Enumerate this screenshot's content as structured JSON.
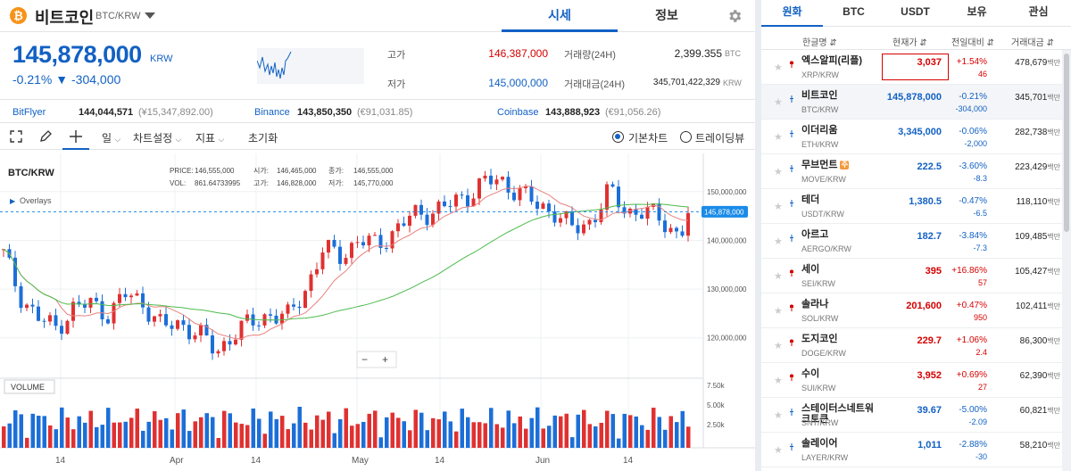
{
  "header": {
    "coin_name": "비트코인",
    "coin_pair": "BTC/KRW",
    "coin_symbol": "₿",
    "tabs": [
      "시세",
      "정보"
    ]
  },
  "price": {
    "value": "145,878,000",
    "unit": "KRW",
    "change_pct": "-0.21%",
    "change_arrow": "▼",
    "change_abs": "-304,000"
  },
  "stats": {
    "high_label": "고가",
    "high": "146,387,000",
    "low_label": "저가",
    "low": "145,000,000",
    "vol_label": "거래량(24H)",
    "vol": "2,399.355",
    "vol_unit": "BTC",
    "amt_label": "거래대금(24H)",
    "amt": "345,701,422,329",
    "amt_unit": "KRW"
  },
  "exchanges": [
    {
      "name": "BitFlyer",
      "value": "144,044,571",
      "sub": "(¥15,347,892.00)"
    },
    {
      "name": "Binance",
      "value": "143,850,350",
      "sub": "(€91,031.85)"
    },
    {
      "name": "Coinbase",
      "value": "143,888,923",
      "sub": "(€91,056.26)"
    }
  ],
  "toolbar": {
    "period": "일",
    "settings": "차트설정",
    "indicator": "지표",
    "reset": "초기화",
    "radio1": "기본차트",
    "radio2": "트레이딩뷰"
  },
  "chart": {
    "symbol": "BTC/KRW",
    "ohlc": {
      "price_l": "PRICE:",
      "price": "146,555,000",
      "vol_l": "VOL:",
      "vol": "861.64733995",
      "open_l": "시가:",
      "open": "146,465,000",
      "high_l": "고가:",
      "high": "146,828,000",
      "close_l": "종가:",
      "close": "146,555,000",
      "low_l": "저가:",
      "low": "145,770,000"
    },
    "overlays": "Overlays",
    "y_ticks": [
      "150,000,000",
      "140,000,000",
      "130,000,000",
      "120,000,000"
    ],
    "y_values": [
      150000000,
      140000000,
      130000000,
      120000000
    ],
    "current": "145,878,000",
    "x_ticks": [
      "14",
      "Apr",
      "14",
      "May",
      "14",
      "Jun",
      "14"
    ],
    "volume_label": "VOLUME",
    "vol_ticks": [
      "7.50k",
      "5.00k",
      "2.50k"
    ],
    "zoom_minus": "−",
    "zoom_plus": "+",
    "colors": {
      "up": "#e03131",
      "down": "#1c6fd8",
      "ma_short": "#e8837d",
      "ma_long": "#4cbb4c",
      "current": "#1a8be8"
    }
  },
  "chart_data": {
    "type": "candlestick",
    "ylim": [
      113000000,
      156000000
    ],
    "close_last": 145878000
  },
  "market": {
    "tabs": [
      "원화",
      "BTC",
      "USDT",
      "보유",
      "관심"
    ],
    "columns": [
      "한글명 ⇵",
      "현재가 ⇵",
      "전일대비 ⇵",
      "거래대금 ⇵"
    ],
    "vol_unit": "백만",
    "rows": [
      {
        "name": "엑스알피(리플)",
        "pair": "XRP/KRW",
        "price": "3,037",
        "pct": "+1.54%",
        "abs": "46",
        "vol": "478,679",
        "dir": "up"
      },
      {
        "name": "비트코인",
        "pair": "BTC/KRW",
        "price": "145,878,000",
        "pct": "-0.21%",
        "abs": "-304,000",
        "vol": "345,701",
        "dir": "down"
      },
      {
        "name": "이더리움",
        "pair": "ETH/KRW",
        "price": "3,345,000",
        "pct": "-0.06%",
        "abs": "-2,000",
        "vol": "282,738",
        "dir": "down"
      },
      {
        "name": "무브먼트",
        "pair": "MOVE/KRW",
        "price": "222.5",
        "pct": "-3.60%",
        "abs": "-8.3",
        "vol": "223,429",
        "dir": "down",
        "badge": "주"
      },
      {
        "name": "테더",
        "pair": "USDT/KRW",
        "price": "1,380.5",
        "pct": "-0.47%",
        "abs": "-6.5",
        "vol": "118,110",
        "dir": "down"
      },
      {
        "name": "아르고",
        "pair": "AERGO/KRW",
        "price": "182.7",
        "pct": "-3.84%",
        "abs": "-7.3",
        "vol": "109,485",
        "dir": "down"
      },
      {
        "name": "세이",
        "pair": "SEI/KRW",
        "price": "395",
        "pct": "+16.86%",
        "abs": "57",
        "vol": "105,427",
        "dir": "up"
      },
      {
        "name": "솔라나",
        "pair": "SOL/KRW",
        "price": "201,600",
        "pct": "+0.47%",
        "abs": "950",
        "vol": "102,411",
        "dir": "up"
      },
      {
        "name": "도지코인",
        "pair": "DOGE/KRW",
        "price": "229.7",
        "pct": "+1.06%",
        "abs": "2.4",
        "vol": "86,300",
        "dir": "up"
      },
      {
        "name": "수이",
        "pair": "SUI/KRW",
        "price": "3,952",
        "pct": "+0.69%",
        "abs": "27",
        "vol": "62,390",
        "dir": "up"
      },
      {
        "name": "스테이터스네트워크토큰",
        "pair": "SNT/KRW",
        "price": "39.67",
        "pct": "-5.00%",
        "abs": "-2.09",
        "vol": "60,821",
        "dir": "down"
      },
      {
        "name": "솔레이어",
        "pair": "LAYER/KRW",
        "price": "1,011",
        "pct": "-2.88%",
        "abs": "-30",
        "vol": "58,210",
        "dir": "down"
      }
    ]
  }
}
